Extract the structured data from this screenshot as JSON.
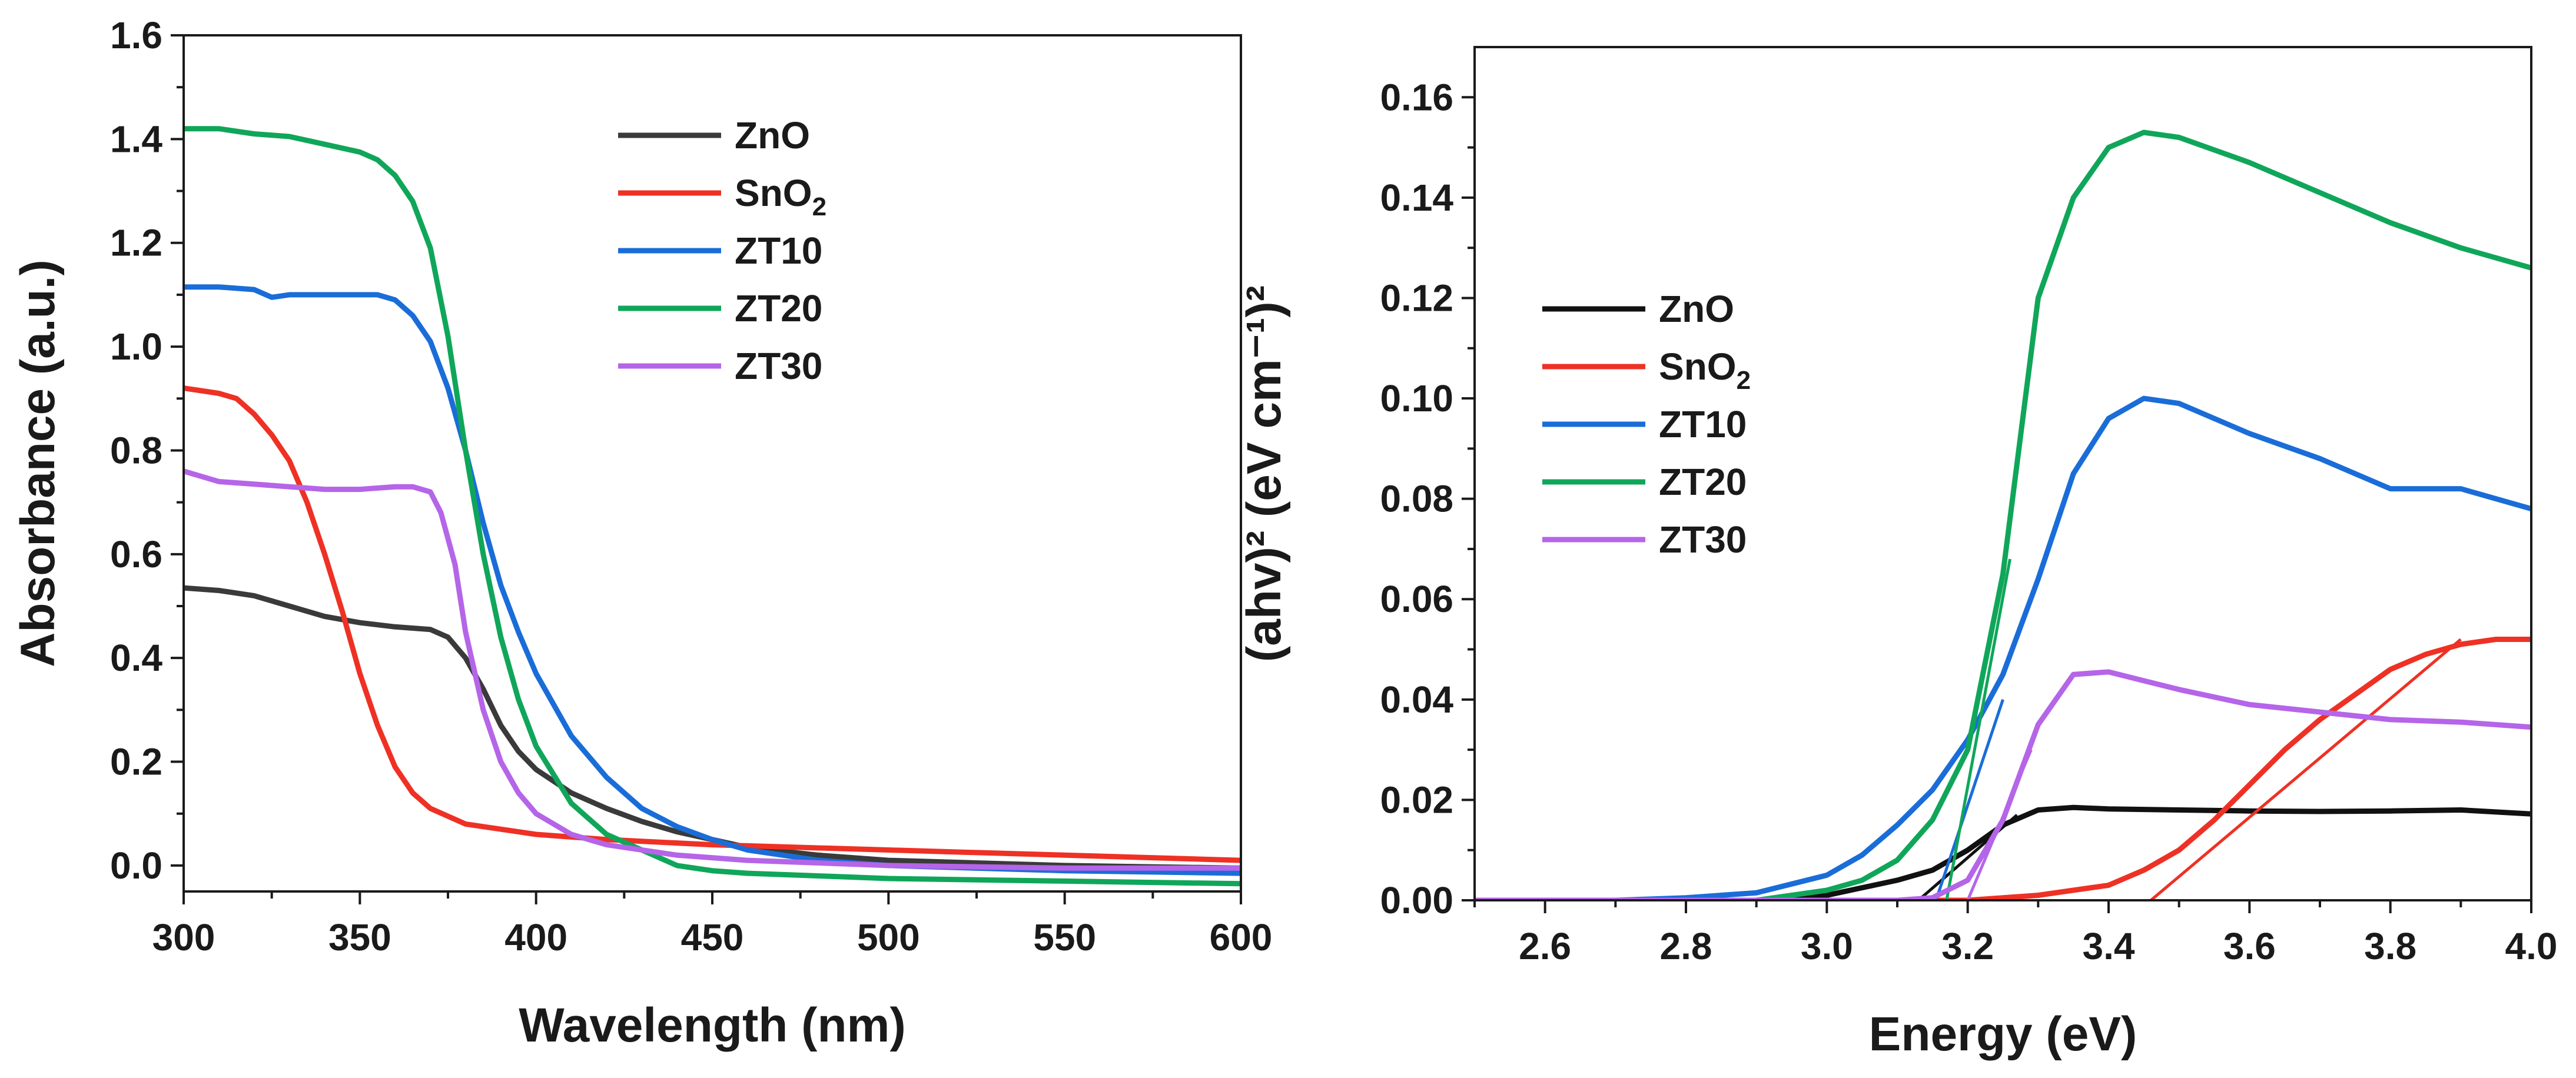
{
  "chart_data": [
    {
      "type": "line",
      "name": "absorbance",
      "xlabel": "Wavelength (nm)",
      "ylabel": "Absorbance (a.u.)",
      "xlim": [
        300,
        600
      ],
      "ylim": [
        -0.05,
        1.6
      ],
      "xticks": [
        300,
        350,
        400,
        450,
        500,
        550,
        600
      ],
      "xtick_labels": [
        "300",
        "350",
        "400",
        "450",
        "500",
        "550",
        "600"
      ],
      "yticks": [
        0.0,
        0.2,
        0.4,
        0.6,
        0.8,
        1.0,
        1.2,
        1.4,
        1.6
      ],
      "ytick_labels": [
        "0.0",
        "0.2",
        "0.4",
        "0.6",
        "0.8",
        "1.0",
        "1.2",
        "1.4",
        "1.6"
      ],
      "legend_position": "top-center",
      "series": [
        {
          "name": "ZnO",
          "label_main": "ZnO",
          "label_sub": "",
          "color": "#3a3a3a",
          "points": [
            [
              300,
              0.535
            ],
            [
              310,
              0.53
            ],
            [
              320,
              0.52
            ],
            [
              330,
              0.5
            ],
            [
              340,
              0.48
            ],
            [
              350,
              0.468
            ],
            [
              360,
              0.46
            ],
            [
              370,
              0.455
            ],
            [
              375,
              0.44
            ],
            [
              380,
              0.4
            ],
            [
              385,
              0.34
            ],
            [
              390,
              0.27
            ],
            [
              395,
              0.22
            ],
            [
              400,
              0.185
            ],
            [
              410,
              0.14
            ],
            [
              420,
              0.11
            ],
            [
              430,
              0.085
            ],
            [
              440,
              0.065
            ],
            [
              450,
              0.05
            ],
            [
              460,
              0.035
            ],
            [
              480,
              0.02
            ],
            [
              500,
              0.01
            ],
            [
              550,
              0.0
            ],
            [
              600,
              -0.005
            ]
          ]
        },
        {
          "name": "SnO2",
          "label_main": "SnO",
          "label_sub": "2",
          "color": "#ee3124",
          "points": [
            [
              300,
              0.92
            ],
            [
              305,
              0.915
            ],
            [
              310,
              0.91
            ],
            [
              315,
              0.9
            ],
            [
              320,
              0.87
            ],
            [
              325,
              0.83
            ],
            [
              330,
              0.78
            ],
            [
              335,
              0.7
            ],
            [
              340,
              0.6
            ],
            [
              345,
              0.49
            ],
            [
              350,
              0.37
            ],
            [
              355,
              0.27
            ],
            [
              360,
              0.19
            ],
            [
              365,
              0.14
            ],
            [
              370,
              0.11
            ],
            [
              375,
              0.095
            ],
            [
              380,
              0.08
            ],
            [
              390,
              0.07
            ],
            [
              400,
              0.06
            ],
            [
              420,
              0.05
            ],
            [
              450,
              0.04
            ],
            [
              500,
              0.03
            ],
            [
              550,
              0.02
            ],
            [
              600,
              0.01
            ]
          ]
        },
        {
          "name": "ZT10",
          "label_main": "ZT10",
          "label_sub": "",
          "color": "#1a6dd8",
          "points": [
            [
              300,
              1.115
            ],
            [
              310,
              1.115
            ],
            [
              320,
              1.11
            ],
            [
              325,
              1.095
            ],
            [
              330,
              1.1
            ],
            [
              340,
              1.1
            ],
            [
              350,
              1.1
            ],
            [
              355,
              1.1
            ],
            [
              360,
              1.09
            ],
            [
              365,
              1.06
            ],
            [
              370,
              1.01
            ],
            [
              375,
              0.92
            ],
            [
              380,
              0.8
            ],
            [
              385,
              0.66
            ],
            [
              390,
              0.54
            ],
            [
              395,
              0.45
            ],
            [
              400,
              0.37
            ],
            [
              410,
              0.25
            ],
            [
              420,
              0.17
            ],
            [
              430,
              0.11
            ],
            [
              440,
              0.075
            ],
            [
              450,
              0.05
            ],
            [
              460,
              0.03
            ],
            [
              480,
              0.01
            ],
            [
              500,
              0.0
            ],
            [
              550,
              -0.01
            ],
            [
              600,
              -0.015
            ]
          ]
        },
        {
          "name": "ZT20",
          "label_main": "ZT20",
          "label_sub": "",
          "color": "#10a65a",
          "points": [
            [
              300,
              1.42
            ],
            [
              310,
              1.42
            ],
            [
              320,
              1.41
            ],
            [
              330,
              1.405
            ],
            [
              340,
              1.39
            ],
            [
              350,
              1.375
            ],
            [
              355,
              1.36
            ],
            [
              360,
              1.33
            ],
            [
              365,
              1.28
            ],
            [
              370,
              1.19
            ],
            [
              375,
              1.02
            ],
            [
              380,
              0.8
            ],
            [
              385,
              0.6
            ],
            [
              390,
              0.44
            ],
            [
              395,
              0.32
            ],
            [
              400,
              0.23
            ],
            [
              410,
              0.12
            ],
            [
              420,
              0.06
            ],
            [
              430,
              0.03
            ],
            [
              440,
              0.0
            ],
            [
              450,
              -0.01
            ],
            [
              460,
              -0.015
            ],
            [
              480,
              -0.02
            ],
            [
              500,
              -0.025
            ],
            [
              550,
              -0.03
            ],
            [
              600,
              -0.035
            ]
          ]
        },
        {
          "name": "ZT30",
          "label_main": "ZT30",
          "label_sub": "",
          "color": "#b565e8",
          "points": [
            [
              300,
              0.76
            ],
            [
              310,
              0.74
            ],
            [
              320,
              0.735
            ],
            [
              330,
              0.73
            ],
            [
              340,
              0.725
            ],
            [
              350,
              0.725
            ],
            [
              360,
              0.73
            ],
            [
              365,
              0.73
            ],
            [
              370,
              0.72
            ],
            [
              373,
              0.68
            ],
            [
              377,
              0.58
            ],
            [
              380,
              0.45
            ],
            [
              385,
              0.3
            ],
            [
              390,
              0.2
            ],
            [
              395,
              0.14
            ],
            [
              400,
              0.1
            ],
            [
              410,
              0.06
            ],
            [
              420,
              0.04
            ],
            [
              440,
              0.02
            ],
            [
              460,
              0.01
            ],
            [
              500,
              0.0
            ],
            [
              550,
              -0.005
            ],
            [
              600,
              -0.005
            ]
          ]
        }
      ]
    },
    {
      "type": "line",
      "name": "tauc",
      "xlabel": "Energy (eV)",
      "ylabel": "(ahv)² (eV cm⁻¹)²",
      "xlim": [
        2.5,
        4.0
      ],
      "ylim": [
        0.0,
        0.17
      ],
      "xticks": [
        2.6,
        2.8,
        3.0,
        3.2,
        3.4,
        3.6,
        3.8,
        4.0
      ],
      "xtick_labels": [
        "2.6",
        "2.8",
        "3.0",
        "3.2",
        "3.4",
        "3.6",
        "3.8",
        "4.0"
      ],
      "yticks": [
        0.0,
        0.02,
        0.04,
        0.06,
        0.08,
        0.1,
        0.12,
        0.14,
        0.16
      ],
      "ytick_labels": [
        "0.00",
        "0.02",
        "0.04",
        "0.06",
        "0.08",
        "0.10",
        "0.12",
        "0.14",
        "0.16"
      ],
      "legend_position": "center-left",
      "series": [
        {
          "name": "ZnO",
          "label_main": "ZnO",
          "label_sub": "",
          "color": "#111111",
          "points": [
            [
              2.5,
              0.0
            ],
            [
              2.9,
              0.0
            ],
            [
              3.0,
              0.001
            ],
            [
              3.1,
              0.004
            ],
            [
              3.15,
              0.006
            ],
            [
              3.2,
              0.01
            ],
            [
              3.25,
              0.015
            ],
            [
              3.3,
              0.018
            ],
            [
              3.35,
              0.0185
            ],
            [
              3.4,
              0.0182
            ],
            [
              3.5,
              0.018
            ],
            [
              3.6,
              0.0178
            ],
            [
              3.7,
              0.0177
            ],
            [
              3.8,
              0.0178
            ],
            [
              3.9,
              0.018
            ],
            [
              4.0,
              0.0172
            ]
          ],
          "fit": [
            [
              3.13,
              0.0
            ],
            [
              3.27,
              0.017
            ]
          ]
        },
        {
          "name": "SnO2",
          "label_main": "SnO",
          "label_sub": "2",
          "color": "#ee3124",
          "points": [
            [
              2.5,
              0.0
            ],
            [
              3.2,
              0.0
            ],
            [
              3.3,
              0.001
            ],
            [
              3.4,
              0.003
            ],
            [
              3.45,
              0.006
            ],
            [
              3.5,
              0.01
            ],
            [
              3.55,
              0.016
            ],
            [
              3.6,
              0.023
            ],
            [
              3.65,
              0.03
            ],
            [
              3.7,
              0.036
            ],
            [
              3.75,
              0.041
            ],
            [
              3.8,
              0.046
            ],
            [
              3.85,
              0.049
            ],
            [
              3.9,
              0.051
            ],
            [
              3.95,
              0.052
            ],
            [
              4.0,
              0.052
            ]
          ],
          "fit": [
            [
              3.46,
              0.0
            ],
            [
              3.9,
              0.052
            ]
          ]
        },
        {
          "name": "ZT10",
          "label_main": "ZT10",
          "label_sub": "",
          "color": "#1a6dd8",
          "points": [
            [
              2.5,
              0.0
            ],
            [
              2.7,
              0.0
            ],
            [
              2.8,
              0.0005
            ],
            [
              2.9,
              0.0015
            ],
            [
              3.0,
              0.005
            ],
            [
              3.05,
              0.009
            ],
            [
              3.1,
              0.015
            ],
            [
              3.15,
              0.022
            ],
            [
              3.2,
              0.032
            ],
            [
              3.25,
              0.045
            ],
            [
              3.3,
              0.064
            ],
            [
              3.35,
              0.085
            ],
            [
              3.4,
              0.096
            ],
            [
              3.45,
              0.1
            ],
            [
              3.5,
              0.099
            ],
            [
              3.6,
              0.093
            ],
            [
              3.7,
              0.088
            ],
            [
              3.8,
              0.082
            ],
            [
              3.9,
              0.082
            ],
            [
              4.0,
              0.078
            ]
          ],
          "fit": [
            [
              3.155,
              0.0
            ],
            [
              3.25,
              0.04
            ]
          ]
        },
        {
          "name": "ZT20",
          "label_main": "ZT20",
          "label_sub": "",
          "color": "#10a65a",
          "points": [
            [
              2.5,
              0.0
            ],
            [
              2.9,
              0.0
            ],
            [
              3.0,
              0.002
            ],
            [
              3.05,
              0.004
            ],
            [
              3.1,
              0.008
            ],
            [
              3.15,
              0.016
            ],
            [
              3.2,
              0.03
            ],
            [
              3.25,
              0.065
            ],
            [
              3.3,
              0.12
            ],
            [
              3.35,
              0.14
            ],
            [
              3.4,
              0.15
            ],
            [
              3.45,
              0.153
            ],
            [
              3.5,
              0.152
            ],
            [
              3.6,
              0.147
            ],
            [
              3.7,
              0.141
            ],
            [
              3.8,
              0.135
            ],
            [
              3.9,
              0.13
            ],
            [
              4.0,
              0.126
            ]
          ],
          "fit": [
            [
              3.17,
              0.0
            ],
            [
              3.26,
              0.068
            ]
          ]
        },
        {
          "name": "ZT30",
          "label_main": "ZT30",
          "label_sub": "",
          "color": "#b565e8",
          "points": [
            [
              2.5,
              0.0
            ],
            [
              3.1,
              0.0
            ],
            [
              3.15,
              0.0005
            ],
            [
              3.2,
              0.004
            ],
            [
              3.25,
              0.016
            ],
            [
              3.3,
              0.035
            ],
            [
              3.35,
              0.045
            ],
            [
              3.4,
              0.0455
            ],
            [
              3.5,
              0.042
            ],
            [
              3.6,
              0.039
            ],
            [
              3.7,
              0.0375
            ],
            [
              3.8,
              0.036
            ],
            [
              3.9,
              0.0355
            ],
            [
              4.0,
              0.0345
            ]
          ],
          "fit": [
            [
              3.2,
              0.0
            ],
            [
              3.29,
              0.03
            ]
          ]
        }
      ]
    }
  ]
}
